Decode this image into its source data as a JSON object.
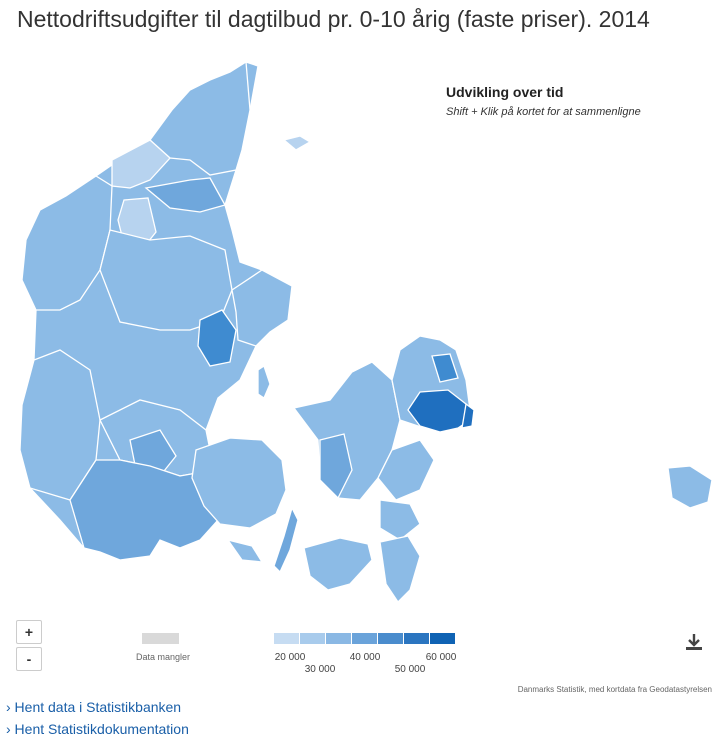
{
  "title": "Nettodriftsudgifter til dagtilbud pr. 0-10 årig (faste priser). 2014",
  "panel": {
    "heading": "Udvikling over tid",
    "hint": "Shift + Klik på kortet for at sammenligne"
  },
  "zoom": {
    "in_label": "+",
    "out_label": "-"
  },
  "legend": {
    "missing_label": "Data mangler",
    "ticks": [
      "20 000",
      "30 000",
      "40 000",
      "50 000",
      "60 000"
    ],
    "colors": [
      "#c6dcf2",
      "#a8cbec",
      "#8ab8e4",
      "#6aa3da",
      "#4a8ccd",
      "#2b75c0",
      "#0f63b4"
    ],
    "missing_color": "#d9d9d9"
  },
  "download_icon": "download-icon",
  "source": "Danmarks Statistik, med kortdata fra Geodatastyrelsen",
  "links": [
    "› Hent data i Statistikbanken",
    "› Hent Statistikdokumentation"
  ],
  "map_colors": {
    "land": "#8cbbe6",
    "light": "#b7d3ef",
    "mid": "#6fa7dc",
    "dark": "#3f8bd0",
    "darkest": "#1f6fbf"
  }
}
